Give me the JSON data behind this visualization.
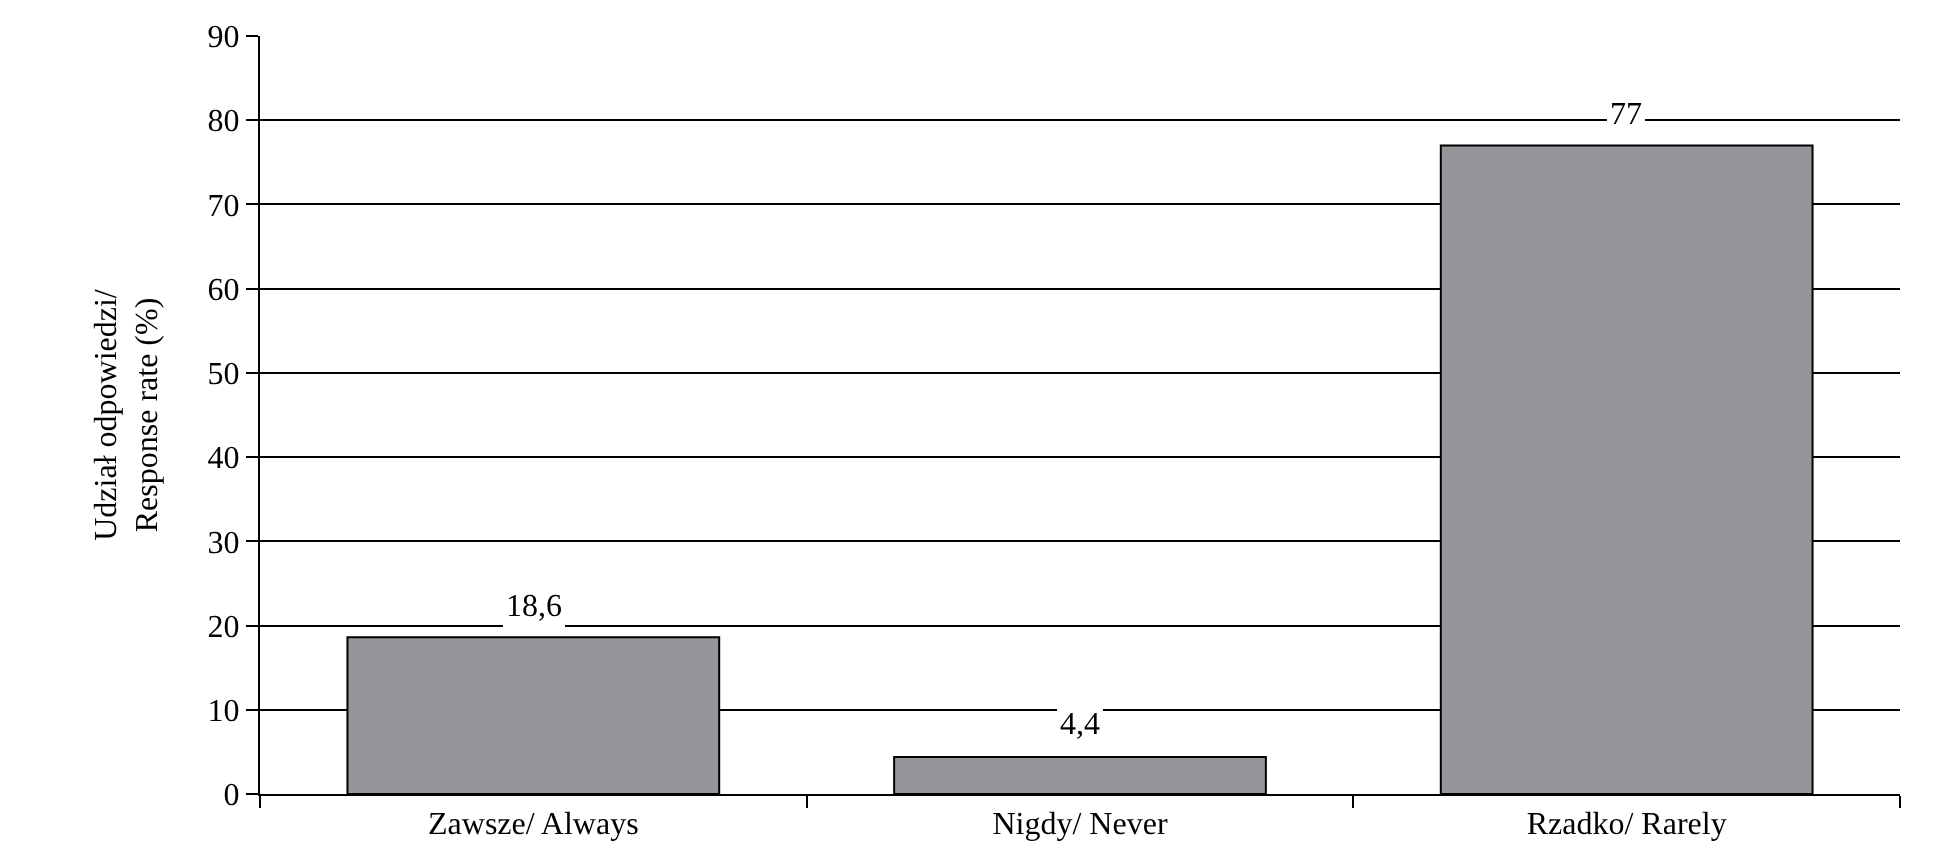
{
  "chart_data": {
    "type": "bar",
    "ylabel": "Udział odpowiedzi/\nResponse rate (%)",
    "categories": [
      "Zawsze/ Always",
      "Nigdy/ Never",
      "Rzadko/ Rarely"
    ],
    "values": [
      18.6,
      4.4,
      77
    ],
    "value_labels": [
      "18,6",
      "4,4",
      "77"
    ],
    "color": "#939598",
    "ylim": [
      0,
      90
    ],
    "yticks": [
      0,
      10,
      20,
      30,
      40,
      50,
      60,
      70,
      80,
      90
    ],
    "grid": "y",
    "legend": false
  }
}
